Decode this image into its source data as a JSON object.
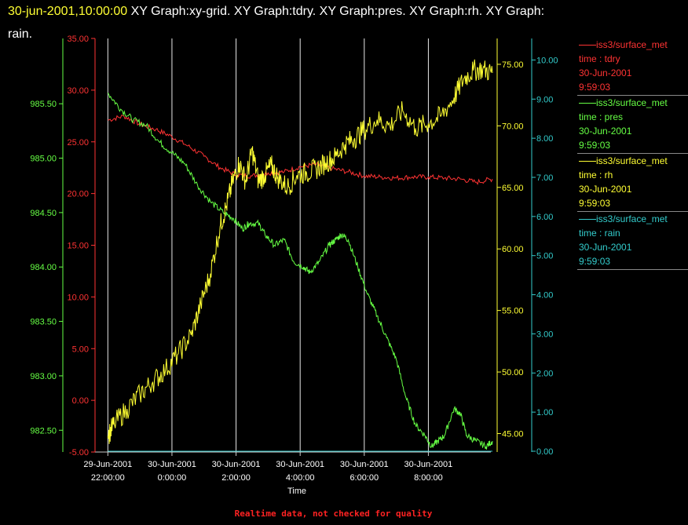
{
  "header": {
    "timestamp": "30-jun-2001,10:00:00",
    "titles": "XY Graph:xy-grid.  XY Graph:tdry.  XY Graph:pres.  XY Graph:rh.  XY Graph:",
    "titles_line2": "rain."
  },
  "footer": {
    "note": "Realtime data, not checked for quality"
  },
  "legend": [
    {
      "source": "iss3/surface_met",
      "line1": "time : tdry",
      "line2": "30-Jun-2001",
      "line3": "9:59:03",
      "color": "#ff3333"
    },
    {
      "source": "iss3/surface_met",
      "line1": "time : pres",
      "line2": "30-Jun-2001",
      "line3": "9:59:03",
      "color": "#66ff44"
    },
    {
      "source": "iss3/surface_met",
      "line1": "time : rh",
      "line2": "30-Jun-2001",
      "line3": "9:59:03",
      "color": "#ffff33"
    },
    {
      "source": "iss3/surface_met",
      "line1": "time : rain",
      "line2": "30-Jun-2001",
      "line3": "9:59:03",
      "color": "#33cccc"
    }
  ],
  "chart_data": {
    "type": "line",
    "xlabel": "Time",
    "xlim": [
      21.6,
      33.95
    ],
    "x_ticks": [
      {
        "x": 22,
        "line1": "29-Jun-2001",
        "line2": "22:00:00"
      },
      {
        "x": 24,
        "line1": "30-Jun-2001",
        "line2": "0:00:00"
      },
      {
        "x": 26,
        "line1": "30-Jun-2001",
        "line2": "2:00:00"
      },
      {
        "x": 28,
        "line1": "30-Jun-2001",
        "line2": "4:00:00"
      },
      {
        "x": 30,
        "line1": "30-Jun-2001",
        "line2": "6:00:00"
      },
      {
        "x": 32,
        "line1": "30-Jun-2001",
        "line2": "8:00:00"
      }
    ],
    "grid": true,
    "axes": {
      "tdry": {
        "range": [
          -5,
          35
        ],
        "ticks": [
          "-5.00",
          "0.00",
          "5.00",
          "10.00",
          "15.00",
          "20.00",
          "25.00",
          "30.00",
          "35.00"
        ],
        "color": "#ff3333"
      },
      "pres": {
        "range": [
          982.3,
          986.1
        ],
        "ticks": [
          "982.50",
          "983.00",
          "983.50",
          "984.00",
          "984.50",
          "985.00",
          "985.50"
        ],
        "color": "#66ff44"
      },
      "rh": {
        "range": [
          43.5,
          77.1
        ],
        "ticks": [
          "45.00",
          "50.00",
          "55.00",
          "60.00",
          "65.00",
          "70.00",
          "75.00"
        ],
        "color": "#ffff33"
      },
      "rain": {
        "range": [
          -0.02,
          10.55
        ],
        "ticks": [
          "0.00",
          "1.00",
          "2.00",
          "3.00",
          "4.00",
          "5.00",
          "6.00",
          "7.00",
          "8.00",
          "9.00",
          "10.00"
        ],
        "color": "#33cccc"
      }
    },
    "series": [
      {
        "name": "tdry",
        "axis": "tdry",
        "color": "#ff3333",
        "x": [
          22.0,
          22.5,
          23.0,
          23.5,
          24.0,
          24.5,
          25.0,
          25.5,
          26.0,
          26.5,
          27.0,
          27.5,
          28.0,
          28.5,
          29.0,
          29.5,
          30.0,
          30.5,
          31.0,
          31.5,
          32.0,
          32.5,
          33.0,
          33.5,
          34.0
        ],
        "values": [
          27.1,
          27.5,
          26.7,
          26.2,
          25.5,
          24.6,
          23.6,
          22.5,
          21.8,
          21.7,
          22.0,
          22.1,
          22.6,
          22.8,
          22.4,
          22.1,
          21.7,
          21.6,
          21.5,
          21.6,
          21.6,
          21.5,
          21.4,
          21.1,
          21.4
        ]
      },
      {
        "name": "pres",
        "axis": "pres",
        "color": "#66ff44",
        "x": [
          22.0,
          22.4,
          22.8,
          23.2,
          23.6,
          24.0,
          24.4,
          24.8,
          25.2,
          25.6,
          25.9,
          26.2,
          26.4,
          26.7,
          26.9,
          27.2,
          27.5,
          27.8,
          28.1,
          28.3,
          28.6,
          28.9,
          29.1,
          29.3,
          29.5,
          29.8,
          30.1,
          30.4,
          30.7,
          31.0,
          31.3,
          31.6,
          31.9,
          32.1,
          32.3,
          32.5,
          32.8,
          33.0,
          33.2,
          33.5,
          33.8,
          34.0
        ],
        "values": [
          985.6,
          985.45,
          985.35,
          985.3,
          985.15,
          985.05,
          984.95,
          984.75,
          984.6,
          984.5,
          984.45,
          984.35,
          984.4,
          984.4,
          984.3,
          984.2,
          984.25,
          984.05,
          984.0,
          983.95,
          984.05,
          984.2,
          984.25,
          984.3,
          984.25,
          984.0,
          983.75,
          983.55,
          983.35,
          983.15,
          982.8,
          982.55,
          982.45,
          982.35,
          982.4,
          982.45,
          982.7,
          982.65,
          982.45,
          982.4,
          982.35,
          982.4
        ]
      },
      {
        "name": "rh",
        "axis": "rh",
        "color": "#ffff33",
        "x": [
          22.0,
          22.2,
          22.6,
          23.0,
          23.4,
          23.8,
          24.2,
          24.6,
          24.9,
          25.2,
          25.5,
          25.7,
          25.9,
          26.1,
          26.3,
          26.5,
          26.7,
          26.9,
          27.1,
          27.3,
          27.6,
          27.9,
          28.2,
          28.5,
          28.8,
          29.1,
          29.4,
          29.7,
          30.0,
          30.4,
          30.8,
          31.2,
          31.6,
          32.0,
          32.4,
          32.8,
          33.1,
          33.4,
          33.7,
          34.0
        ],
        "values": [
          44.8,
          45.8,
          47.0,
          48.2,
          49.2,
          50.2,
          51.5,
          53.0,
          55.5,
          58.0,
          61.8,
          63.5,
          65.5,
          67.0,
          65.5,
          68.0,
          65.5,
          66.0,
          66.8,
          65.8,
          65.0,
          66.0,
          66.2,
          66.5,
          67.0,
          67.5,
          68.5,
          69.0,
          69.7,
          70.5,
          70.0,
          71.2,
          69.8,
          70.2,
          70.8,
          72.3,
          73.8,
          74.5,
          74.6,
          74.3
        ]
      },
      {
        "name": "rain",
        "axis": "rain",
        "color": "#33cccc",
        "x": [
          22.0,
          34.0
        ],
        "values": [
          0.0,
          0.0
        ]
      }
    ]
  }
}
